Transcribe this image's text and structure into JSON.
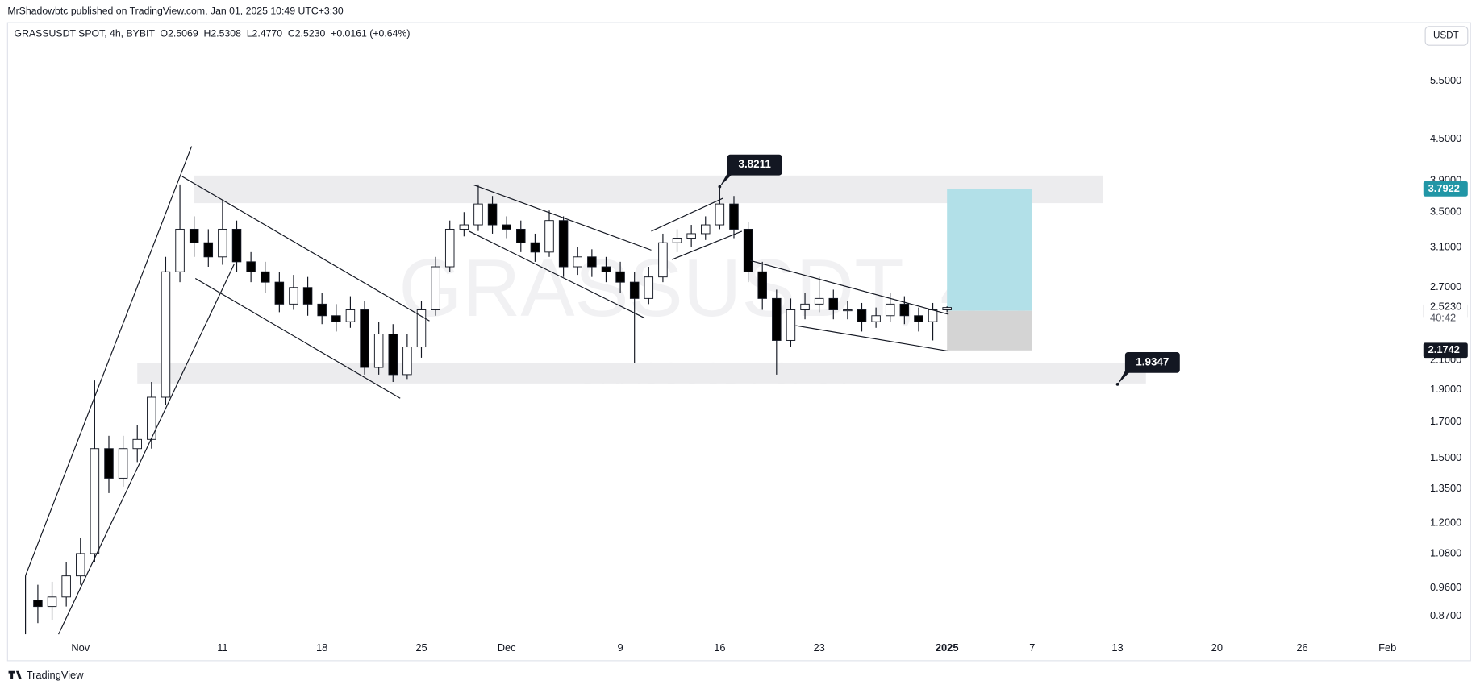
{
  "header": {
    "published": "MrShadowbtc published on TradingView.com, Jan 01, 2025 10:49 UTC+3:30",
    "symbol_line": "GRASSUSDT SPOT, 4h, BYBIT  O2.5069  H2.5308  L2.4770  C2.5230  +0.0161 (+0.64%)",
    "currency": "USDT",
    "watermark": "GRASSUSDT, 4h",
    "watermark_sub": "GRASSUSDT SPOT",
    "brand": "TradingView"
  },
  "chart_data": {
    "type": "candlestick",
    "log_scale": true,
    "grid": false,
    "up_color": "#ffffff",
    "down_color": "#000000",
    "x": [
      "2024-10-29",
      "2024-10-30",
      "2024-10-31",
      "2024-11-01",
      "2024-11-02",
      "2024-11-03",
      "2024-11-04",
      "2024-11-05",
      "2024-11-06",
      "2024-11-07",
      "2024-11-08",
      "2024-11-09",
      "2024-11-10",
      "2024-11-11",
      "2024-11-12",
      "2024-11-13",
      "2024-11-14",
      "2024-11-15",
      "2024-11-16",
      "2024-11-17",
      "2024-11-18",
      "2024-11-19",
      "2024-11-20",
      "2024-11-21",
      "2024-11-22",
      "2024-11-23",
      "2024-11-24",
      "2024-11-25",
      "2024-11-26",
      "2024-11-27",
      "2024-11-28",
      "2024-11-29",
      "2024-11-30",
      "2024-12-01",
      "2024-12-02",
      "2024-12-03",
      "2024-12-04",
      "2024-12-05",
      "2024-12-06",
      "2024-12-07",
      "2024-12-08",
      "2024-12-09",
      "2024-12-10",
      "2024-12-11",
      "2024-12-12",
      "2024-12-13",
      "2024-12-14",
      "2024-12-15",
      "2024-12-16",
      "2024-12-17",
      "2024-12-18",
      "2024-12-19",
      "2024-12-20",
      "2024-12-21",
      "2024-12-22",
      "2024-12-23",
      "2024-12-24",
      "2024-12-25",
      "2024-12-26",
      "2024-12-27",
      "2024-12-28",
      "2024-12-29",
      "2024-12-30",
      "2024-12-31",
      "2025-01-01"
    ],
    "open": [
      0.92,
      0.9,
      0.93,
      1.0,
      1.08,
      1.55,
      1.4,
      1.55,
      1.6,
      1.85,
      2.85,
      3.3,
      3.15,
      3.0,
      3.3,
      2.95,
      2.85,
      2.75,
      2.55,
      2.7,
      2.55,
      2.45,
      2.4,
      2.5,
      2.05,
      2.3,
      2.0,
      2.2,
      2.5,
      2.9,
      3.3,
      3.35,
      3.6,
      3.35,
      3.3,
      3.15,
      3.05,
      3.4,
      2.9,
      3.0,
      2.9,
      2.85,
      2.75,
      2.6,
      2.8,
      3.15,
      3.2,
      3.25,
      3.35,
      3.6,
      3.3,
      2.85,
      2.6,
      2.25,
      2.5,
      2.55,
      2.6,
      2.5,
      2.5,
      2.4,
      2.45,
      2.55,
      2.45,
      2.4,
      2.5
    ],
    "high": [
      0.97,
      0.98,
      1.05,
      1.14,
      1.96,
      1.62,
      1.62,
      1.68,
      1.95,
      3.0,
      3.85,
      3.45,
      3.3,
      3.65,
      3.4,
      3.05,
      2.95,
      2.85,
      2.82,
      2.8,
      2.65,
      2.55,
      2.62,
      2.58,
      2.4,
      2.38,
      2.3,
      2.58,
      3.0,
      3.4,
      3.5,
      3.85,
      3.7,
      3.45,
      3.4,
      3.25,
      3.52,
      3.45,
      3.1,
      3.08,
      3.0,
      2.95,
      2.85,
      2.9,
      3.25,
      3.3,
      3.35,
      3.45,
      3.82,
      3.7,
      3.38,
      2.95,
      2.68,
      2.6,
      2.65,
      2.8,
      2.68,
      2.58,
      2.56,
      2.52,
      2.65,
      2.62,
      2.52,
      2.56,
      2.53
    ],
    "low": [
      0.85,
      0.86,
      0.9,
      0.97,
      1.05,
      1.33,
      1.36,
      1.48,
      1.55,
      1.8,
      2.75,
      3.0,
      2.9,
      2.92,
      2.85,
      2.75,
      2.65,
      2.48,
      2.5,
      2.45,
      2.38,
      2.32,
      2.35,
      2.0,
      2.0,
      1.95,
      1.97,
      2.12,
      2.45,
      2.85,
      3.22,
      3.28,
      3.25,
      3.2,
      3.05,
      2.95,
      3.0,
      2.8,
      2.82,
      2.8,
      2.75,
      2.65,
      2.08,
      2.55,
      2.75,
      3.05,
      3.1,
      3.18,
      3.3,
      3.2,
      2.75,
      2.5,
      2.0,
      2.2,
      2.42,
      2.48,
      2.42,
      2.42,
      2.32,
      2.35,
      2.4,
      2.38,
      2.32,
      2.25,
      2.48
    ],
    "close": [
      0.9,
      0.93,
      1.0,
      1.08,
      1.55,
      1.4,
      1.55,
      1.6,
      1.85,
      2.85,
      3.3,
      3.15,
      3.0,
      3.3,
      2.95,
      2.85,
      2.75,
      2.55,
      2.7,
      2.55,
      2.45,
      2.4,
      2.5,
      2.05,
      2.3,
      2.0,
      2.2,
      2.5,
      2.9,
      3.3,
      3.35,
      3.6,
      3.35,
      3.3,
      3.15,
      3.05,
      3.4,
      2.9,
      3.0,
      2.9,
      2.85,
      2.75,
      2.6,
      2.8,
      3.15,
      3.2,
      3.25,
      3.35,
      3.6,
      3.3,
      2.85,
      2.6,
      2.25,
      2.5,
      2.55,
      2.6,
      2.5,
      2.5,
      2.4,
      2.45,
      2.55,
      2.45,
      2.4,
      2.5,
      2.52
    ],
    "xlim": [
      "2024-10-27",
      "2025-02-03"
    ],
    "xticks": [
      {
        "value": "2024-11-01",
        "label": "Nov"
      },
      {
        "value": "2024-11-11",
        "label": "11"
      },
      {
        "value": "2024-11-18",
        "label": "18"
      },
      {
        "value": "2024-11-25",
        "label": "25"
      },
      {
        "value": "2024-12-01",
        "label": "Dec"
      },
      {
        "value": "2024-12-09",
        "label": "9"
      },
      {
        "value": "2024-12-16",
        "label": "16"
      },
      {
        "value": "2024-12-23",
        "label": "23"
      },
      {
        "value": "2025-01-01",
        "label": "2025"
      },
      {
        "value": "2025-01-07",
        "label": "7"
      },
      {
        "value": "2025-01-13",
        "label": "13"
      },
      {
        "value": "2025-01-20",
        "label": "20"
      },
      {
        "value": "2025-01-26",
        "label": "26"
      },
      {
        "value": "2025-02-01",
        "label": "Feb"
      }
    ],
    "ylim": [
      0.81,
      6.7
    ],
    "yticks": [
      {
        "value": 0.87,
        "label": "0.8700"
      },
      {
        "value": 0.96,
        "label": "0.9600"
      },
      {
        "value": 1.08,
        "label": "1.0800"
      },
      {
        "value": 1.2,
        "label": "1.2000"
      },
      {
        "value": 1.35,
        "label": "1.3500"
      },
      {
        "value": 1.5,
        "label": "1.5000"
      },
      {
        "value": 1.7,
        "label": "1.7000"
      },
      {
        "value": 1.9,
        "label": "1.9000"
      },
      {
        "value": 2.1,
        "label": "2.1000"
      },
      {
        "value": 2.7,
        "label": "2.7000"
      },
      {
        "value": 3.1,
        "label": "3.1000"
      },
      {
        "value": 3.5,
        "label": "3.5000"
      },
      {
        "value": 3.9,
        "label": "3.9000"
      },
      {
        "value": 4.5,
        "label": "4.5000"
      },
      {
        "value": 5.5,
        "label": "5.5000"
      }
    ],
    "zones": [
      {
        "from": "2024-11-09",
        "to": "2025-01-12",
        "low": 3.61,
        "high": 3.97
      },
      {
        "from": "2024-11-05",
        "to": "2025-01-15",
        "low": 1.94,
        "high": 2.08
      }
    ],
    "position": {
      "from": "2025-01-01",
      "to": "2025-01-07",
      "target": 3.7922,
      "entry": 2.4917,
      "stop": 2.1742,
      "target_color": "#b2e0e8",
      "stop_color": "#d4d4d4"
    },
    "last_price": {
      "value": 2.523,
      "label": "2.5230"
    },
    "countdown": "40:42",
    "annotations": [
      {
        "x": "2024-12-16",
        "value": 3.8211
      },
      {
        "x": "2025-01-13",
        "value": 1.9347
      }
    ]
  }
}
